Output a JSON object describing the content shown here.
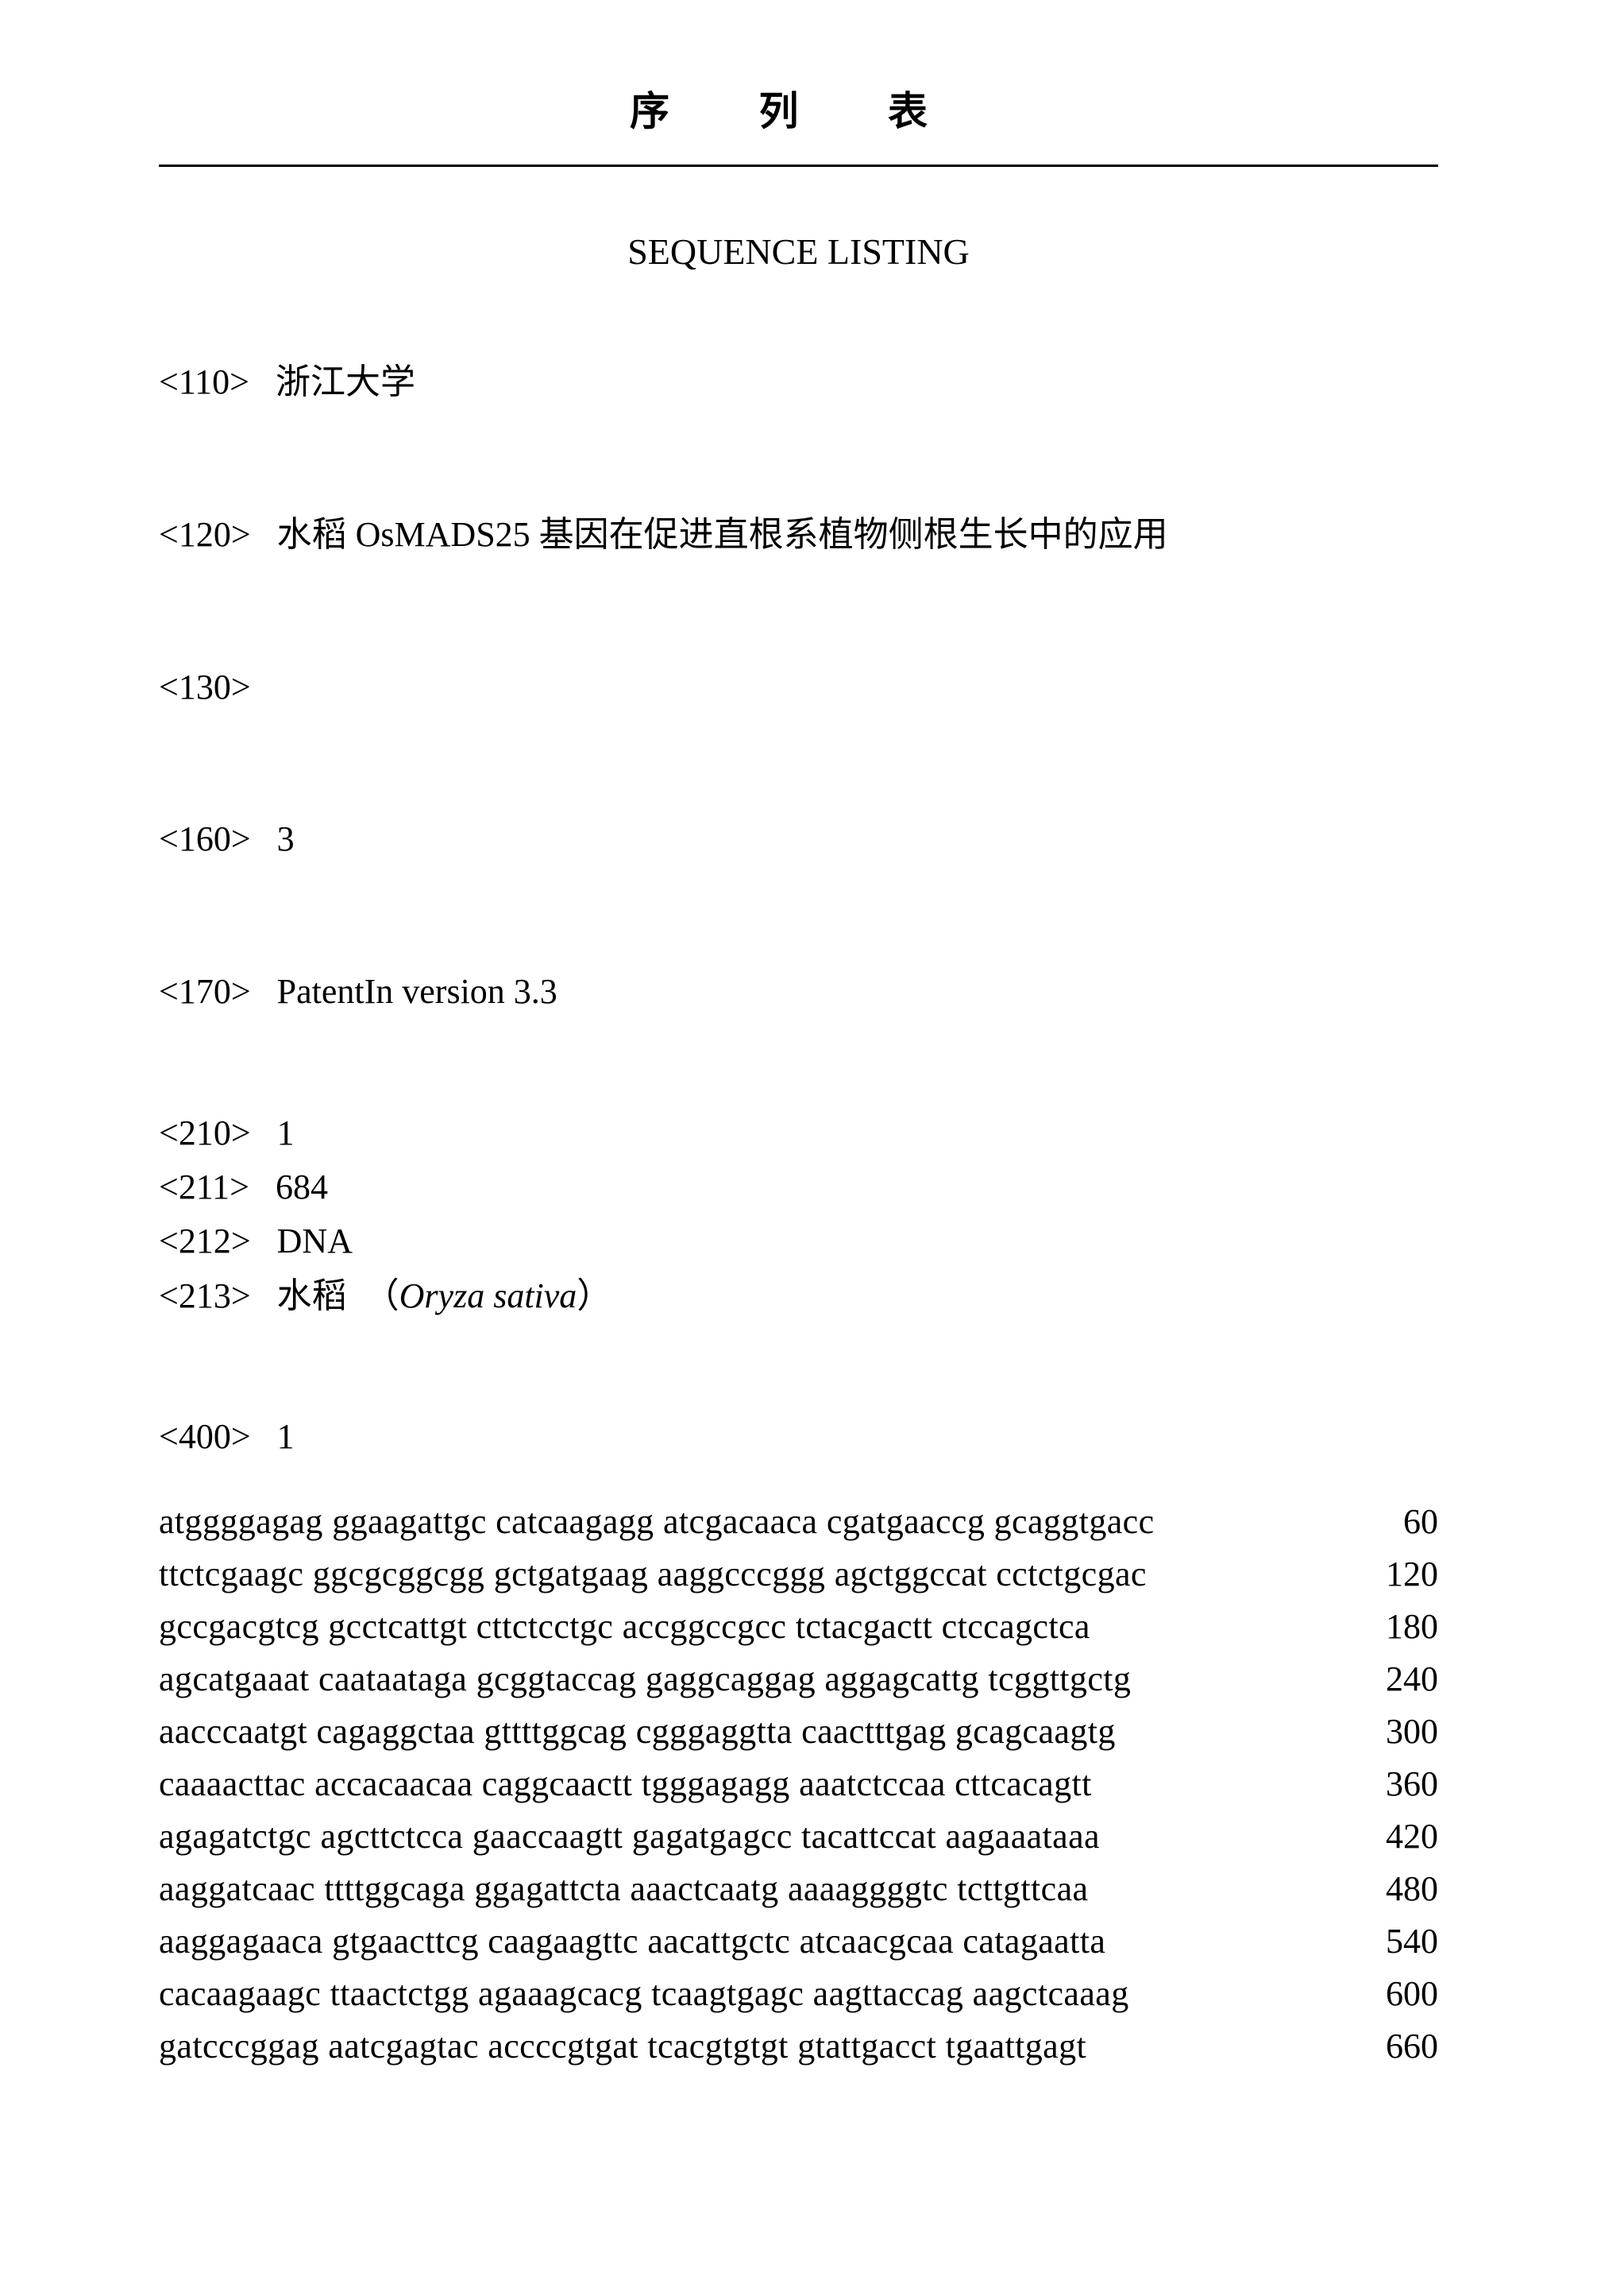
{
  "title": {
    "chinese": "序  列  表",
    "english": "SEQUENCE LISTING"
  },
  "headers": {
    "applicant_tag": "<110>",
    "applicant": "浙江大学",
    "title_tag": "<120>",
    "invention_title": "水稻 OsMADS25 基因在促进直根系植物侧根生长中的应用",
    "ref_tag": "<130>",
    "ref_value": "",
    "count_tag": "<160>",
    "count_value": "3",
    "software_tag": "<170>",
    "software_value": "PatentIn version 3.3"
  },
  "seq_info": {
    "id_tag": "<210>",
    "id_value": "1",
    "length_tag": "<211>",
    "length_value": "684",
    "type_tag": "<212>",
    "type_value": "DNA",
    "organism_tag": "<213>",
    "organism_cn": "水稻",
    "organism_paren_open": "（",
    "organism_latin": "Oryza sativa",
    "organism_paren_close": "）"
  },
  "seq_data": {
    "header_tag": "<400>",
    "header_value": "1",
    "rows": [
      {
        "seq": "atggggagag ggaagattgc catcaagagg atcgacaaca cgatgaaccg gcaggtgacc",
        "num": "60"
      },
      {
        "seq": "ttctcgaagc ggcgcggcgg gctgatgaag aaggcccggg agctggccat cctctgcgac",
        "num": "120"
      },
      {
        "seq": "gccgacgtcg gcctcattgt cttctcctgc accggccgcc tctacgactt ctccagctca",
        "num": "180"
      },
      {
        "seq": "agcatgaaat caataataga gcggtaccag gaggcaggag aggagcattg tcggttgctg",
        "num": "240"
      },
      {
        "seq": "aacccaatgt cagaggctaa gttttggcag cgggaggtta caactttgag gcagcaagtg",
        "num": "300"
      },
      {
        "seq": "caaaacttac accacaacaa caggcaactt tgggagagg aaatctccaa cttcacagtt",
        "num": "360"
      },
      {
        "seq": "agagatctgc agcttctcca gaaccaagtt gagatgagcc tacattccat aagaaataaa",
        "num": "420"
      },
      {
        "seq": "aaggatcaac ttttggcaga ggagattcta aaactcaatg aaaaggggtc tcttgttcaa",
        "num": "480"
      },
      {
        "seq": "aaggagaaca gtgaacttcg caagaagttc aacattgctc atcaacgcaa catagaatta",
        "num": "540"
      },
      {
        "seq": "cacaagaagc ttaactctgg agaaagcacg tcaagtgagc aagttaccag aagctcaaag",
        "num": "600"
      },
      {
        "seq": "gatcccggag aatcgagtac accccgtgat tcacgtgtgt gtattgacct tgaattgagt",
        "num": "660"
      }
    ]
  },
  "styles": {
    "background_color": "#ffffff",
    "text_color": "#000000",
    "title_fontsize": 50,
    "body_fontsize": 44,
    "border_color": "#000000",
    "font_family_cn": "SimSun",
    "font_family_en": "Times New Roman"
  }
}
